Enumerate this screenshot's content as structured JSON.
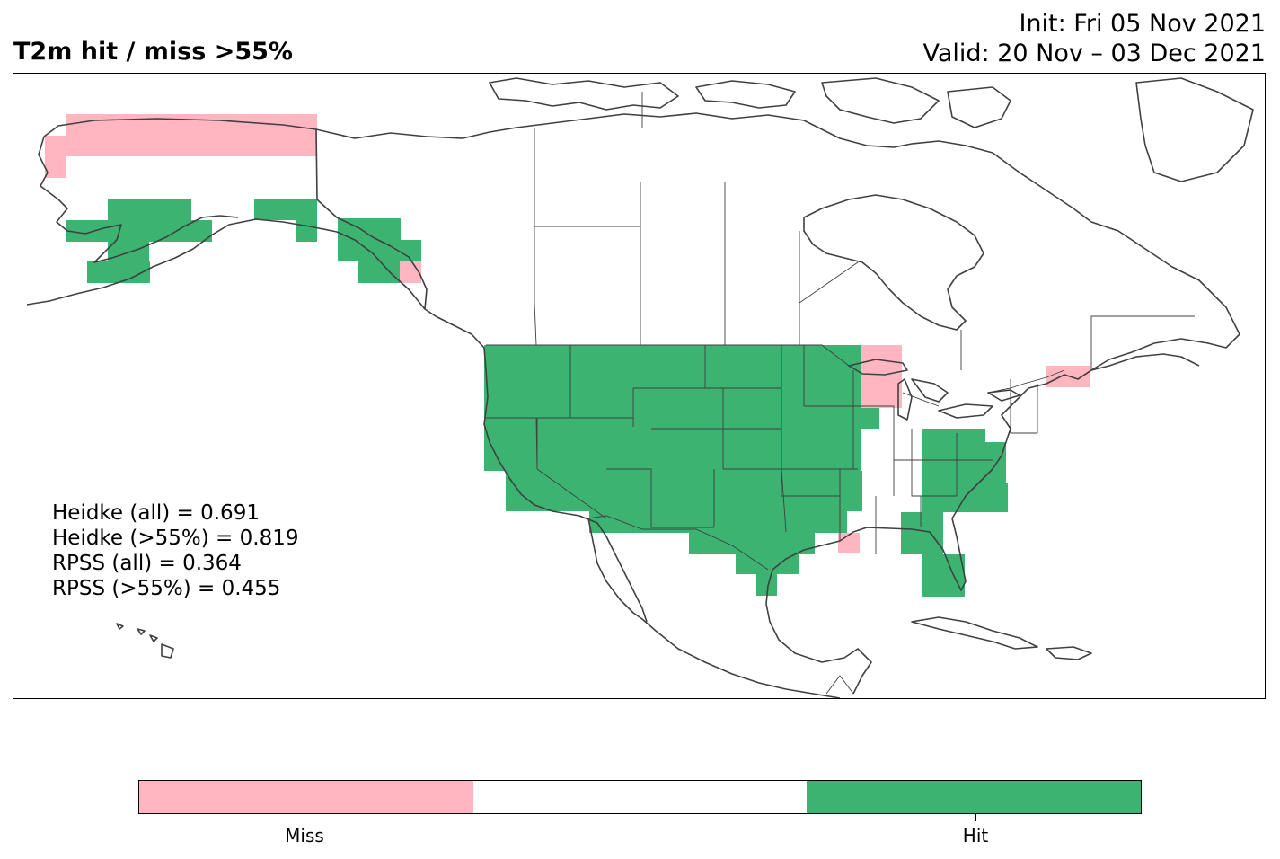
{
  "title": "T2m hit / miss  >55%",
  "init_line": "Init: Fri 05 Nov 2021",
  "valid_line": "Valid: 20 Nov – 03 Dec 2021",
  "scores": [
    "Heidke (all) = 0.691",
    "Heidke (>55%) = 0.819",
    "RPSS (all) = 0.364",
    "RPSS (>55%) = 0.455"
  ],
  "colors": {
    "miss": "#FFB6C1",
    "neutral": "#FFFFFF",
    "hit": "#3CB371",
    "coast": "#404040",
    "border": "#404040"
  },
  "legend": {
    "miss_label": "Miss",
    "hit_label": "Hit"
  }
}
